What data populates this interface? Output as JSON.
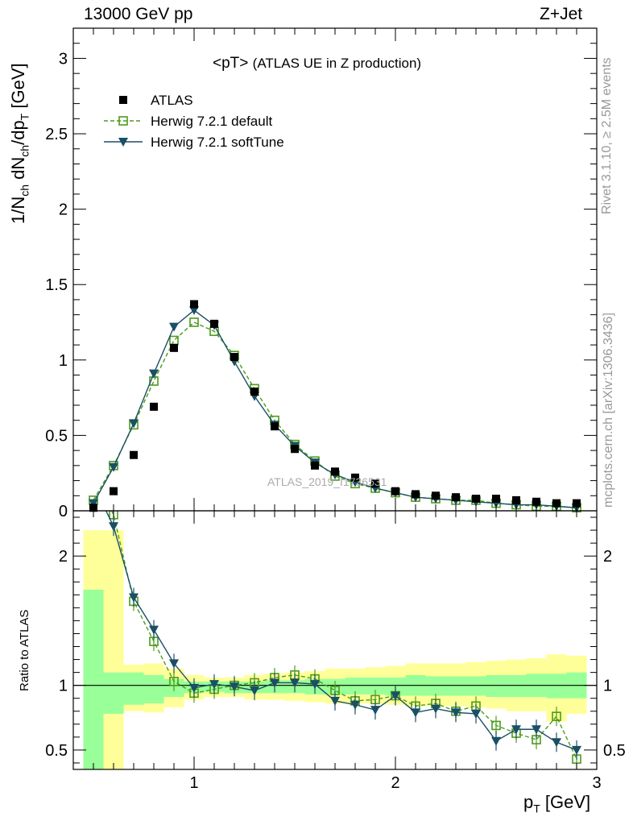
{
  "header": {
    "left": "13000 GeV pp",
    "right": "Z+Jet"
  },
  "side_notes": {
    "rivet": "Rivet 3.1.10, ≥ 2.5M events",
    "mcplots": "mcplots.cern.ch [arXiv:1306.3436]"
  },
  "top_title": "<pT>",
  "top_subtitle": "(ATLAS UE in Z production)",
  "watermark": "ATLAS_2019_I1736531",
  "ratio_ylabel": "Ratio to ATLAS",
  "xlabel_parts": {
    "p": "p",
    "sub": "T",
    "unit": " [GeV]"
  },
  "ylabel_text": "1/N_ch dN_ch/dp_T [GeV]",
  "colors": {
    "data": "#000000",
    "default": "#4d9b1c",
    "softtune": "#1a4f66",
    "band_inner": "#99ff99",
    "band_outer": "#ffff99"
  },
  "chart_data": [
    {
      "type": "line",
      "panel": "main",
      "title": "<pT> (ATLAS UE in Z production)",
      "ylim": [
        0,
        3.2
      ],
      "xlim": [
        0.4,
        3.0
      ],
      "yticks": [
        0,
        0.5,
        1,
        1.5,
        2,
        2.5,
        3
      ],
      "ytick_labels": [
        "0",
        "0.5",
        "1",
        "1.5",
        "2",
        "2.5",
        "3"
      ],
      "xticks": [
        1,
        2,
        3
      ],
      "x": [
        0.5,
        0.6,
        0.7,
        0.8,
        0.9,
        1.0,
        1.1,
        1.2,
        1.3,
        1.4,
        1.5,
        1.6,
        1.7,
        1.8,
        1.9,
        2.0,
        2.1,
        2.2,
        2.3,
        2.4,
        2.5,
        2.6,
        2.7,
        2.8,
        2.9
      ],
      "legend_position": "top-left",
      "series": [
        {
          "name": "ATLAS",
          "style": "marker-square",
          "values": [
            0.02,
            0.13,
            0.37,
            0.69,
            1.08,
            1.37,
            1.24,
            1.02,
            0.79,
            0.56,
            0.41,
            0.3,
            0.26,
            0.22,
            0.18,
            0.13,
            0.11,
            0.1,
            0.09,
            0.08,
            0.08,
            0.07,
            0.06,
            0.05,
            0.05
          ]
        },
        {
          "name": "Herwig 7.2.1 default",
          "style": "dashed-open-square",
          "values": [
            0.07,
            0.3,
            0.57,
            0.86,
            1.13,
            1.25,
            1.19,
            1.03,
            0.81,
            0.6,
            0.44,
            0.33,
            0.23,
            0.18,
            0.15,
            0.12,
            0.09,
            0.08,
            0.07,
            0.07,
            0.05,
            0.04,
            0.03,
            0.03,
            0.02
          ]
        },
        {
          "name": "Herwig 7.2.1 softTune",
          "style": "solid-triangle",
          "values": [
            0.05,
            0.29,
            0.58,
            0.91,
            1.22,
            1.33,
            1.23,
            0.99,
            0.76,
            0.57,
            0.43,
            0.32,
            0.24,
            0.19,
            0.15,
            0.12,
            0.09,
            0.08,
            0.07,
            0.06,
            0.05,
            0.04,
            0.04,
            0.03,
            0.02
          ]
        }
      ]
    },
    {
      "type": "line",
      "panel": "ratio",
      "ylabel": "Ratio to ATLAS",
      "xlabel": "p_T [GeV]",
      "ylim": [
        0.35,
        2.35
      ],
      "xlim": [
        0.4,
        3.0
      ],
      "yticks": [
        0.5,
        1,
        2
      ],
      "ytick_labels": [
        "0.5",
        "1",
        "2"
      ],
      "xticks": [
        1,
        2,
        3
      ],
      "xtick_labels": [
        "1",
        "2",
        "3"
      ],
      "reference_line": 1,
      "x": [
        0.5,
        0.6,
        0.7,
        0.8,
        0.9,
        1.0,
        1.1,
        1.2,
        1.3,
        1.4,
        1.5,
        1.6,
        1.7,
        1.8,
        1.9,
        2.0,
        2.1,
        2.2,
        2.3,
        2.4,
        2.5,
        2.6,
        2.7,
        2.8,
        2.9
      ],
      "bin_edges": [
        0.45,
        0.55,
        0.65,
        0.75,
        0.85,
        0.95,
        1.05,
        1.15,
        1.25,
        1.35,
        1.45,
        1.55,
        1.65,
        1.75,
        1.85,
        1.95,
        2.05,
        2.15,
        2.25,
        2.35,
        2.45,
        2.55,
        2.65,
        2.75,
        2.85,
        2.95
      ],
      "band_inner": [
        [
          0.35,
          1.74
        ],
        [
          0.78,
          1.1
        ],
        [
          0.85,
          1.1
        ],
        [
          0.86,
          1.08
        ],
        [
          0.91,
          1.05
        ],
        [
          0.94,
          1.03
        ],
        [
          0.95,
          1.03
        ],
        [
          0.94,
          1.03
        ],
        [
          0.94,
          1.03
        ],
        [
          0.94,
          1.04
        ],
        [
          0.94,
          1.04
        ],
        [
          0.93,
          1.05
        ],
        [
          0.93,
          1.05
        ],
        [
          0.93,
          1.06
        ],
        [
          0.93,
          1.06
        ],
        [
          0.92,
          1.06
        ],
        [
          0.92,
          1.08
        ],
        [
          0.92,
          1.07
        ],
        [
          0.92,
          1.07
        ],
        [
          0.92,
          1.07
        ],
        [
          0.91,
          1.08
        ],
        [
          0.91,
          1.08
        ],
        [
          0.91,
          1.09
        ],
        [
          0.9,
          1.09
        ],
        [
          0.9,
          1.1
        ]
      ],
      "band_outer": [
        [
          0.35,
          2.2
        ],
        [
          0.35,
          2.2
        ],
        [
          0.8,
          1.16
        ],
        [
          0.79,
          1.17
        ],
        [
          0.83,
          1.13
        ],
        [
          0.89,
          1.08
        ],
        [
          0.91,
          1.06
        ],
        [
          0.91,
          1.06
        ],
        [
          0.89,
          1.08
        ],
        [
          0.89,
          1.09
        ],
        [
          0.88,
          1.1
        ],
        [
          0.87,
          1.11
        ],
        [
          0.86,
          1.13
        ],
        [
          0.86,
          1.13
        ],
        [
          0.86,
          1.14
        ],
        [
          0.85,
          1.15
        ],
        [
          0.84,
          1.17
        ],
        [
          0.84,
          1.17
        ],
        [
          0.84,
          1.17
        ],
        [
          0.83,
          1.18
        ],
        [
          0.82,
          1.19
        ],
        [
          0.8,
          1.2
        ],
        [
          0.8,
          1.21
        ],
        [
          0.72,
          1.24
        ],
        [
          0.78,
          1.23
        ]
      ],
      "series": [
        {
          "name": "Herwig 7.2.1 default",
          "style": "dashed-open-square",
          "values": [
            2.62,
            2.32,
            1.65,
            1.34,
            1.03,
            0.94,
            0.97,
            1.0,
            1.02,
            1.06,
            1.08,
            1.05,
            0.96,
            0.88,
            0.89,
            0.92,
            0.84,
            0.86,
            0.8,
            0.84,
            0.69,
            0.63,
            0.58,
            0.76,
            0.43
          ]
        },
        {
          "name": "Herwig 7.2.1 softTune",
          "style": "solid-triangle",
          "values": [
            2.55,
            2.23,
            1.68,
            1.43,
            1.17,
            0.98,
            1.01,
            0.99,
            0.96,
            1.02,
            1.02,
            1.01,
            0.88,
            0.85,
            0.81,
            0.92,
            0.79,
            0.82,
            0.79,
            0.78,
            0.57,
            0.66,
            0.66,
            0.56,
            0.5
          ]
        }
      ]
    }
  ]
}
